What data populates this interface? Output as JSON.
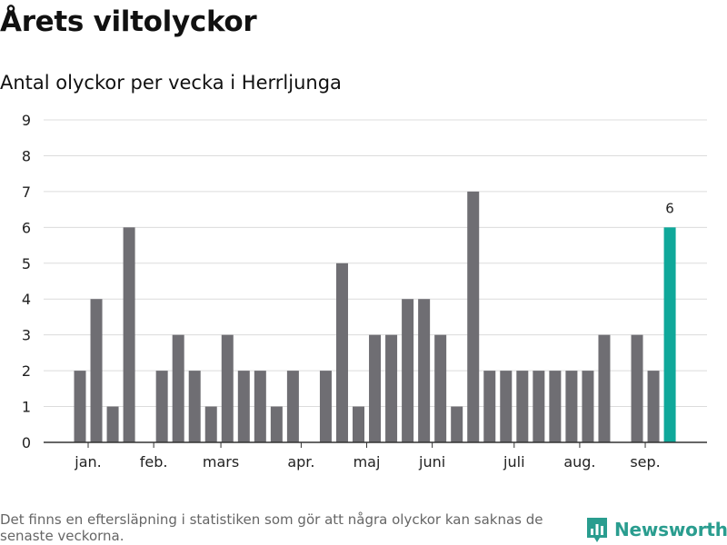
{
  "chart_data": {
    "type": "bar",
    "title": "Årets viltolyckor",
    "subtitle": "Antal olyckor per vecka i Herrljunga",
    "weeks": [
      1,
      2,
      3,
      4,
      5,
      6,
      7,
      8,
      9,
      10,
      11,
      12,
      13,
      14,
      15,
      16,
      17,
      18,
      19,
      20,
      21,
      22,
      23,
      24,
      25,
      26,
      27,
      28,
      29,
      30,
      31,
      32,
      33,
      34,
      35,
      36,
      37,
      38
    ],
    "values": [
      0,
      2,
      4,
      1,
      6,
      0,
      2,
      3,
      2,
      1,
      3,
      2,
      2,
      1,
      2,
      0,
      2,
      5,
      1,
      3,
      3,
      4,
      4,
      3,
      1,
      7,
      2,
      2,
      2,
      2,
      2,
      2,
      2,
      3,
      0,
      3,
      2,
      6
    ],
    "ylim": [
      0,
      9
    ],
    "yticks": [
      0,
      1,
      2,
      3,
      4,
      5,
      6,
      7,
      8,
      9
    ],
    "month_labels": [
      {
        "label": "jan.",
        "week": 2.5
      },
      {
        "label": "feb.",
        "week": 6.5
      },
      {
        "label": "mars",
        "week": 10.6
      },
      {
        "label": "apr.",
        "week": 15.5
      },
      {
        "label": "maj",
        "week": 19.5
      },
      {
        "label": "juni",
        "week": 23.5
      },
      {
        "label": "juli",
        "week": 28.5
      },
      {
        "label": "aug.",
        "week": 32.5
      },
      {
        "label": "sep.",
        "week": 36.5
      }
    ],
    "highlight_last": true,
    "highlight_label": "6",
    "grid": true,
    "colors": {
      "bar": "#6f6e73",
      "highlight": "#0fa89a",
      "grid": "#dcdcdc",
      "axis": "#333333"
    }
  },
  "footnote": "Det finns en eftersläpning i statistiken som gör att några olyckor kan saknas de senaste veckorna.",
  "brand": {
    "name": "Newsworthy",
    "icon": "bar-chart-logo-icon",
    "color": "#2a9d8f"
  }
}
